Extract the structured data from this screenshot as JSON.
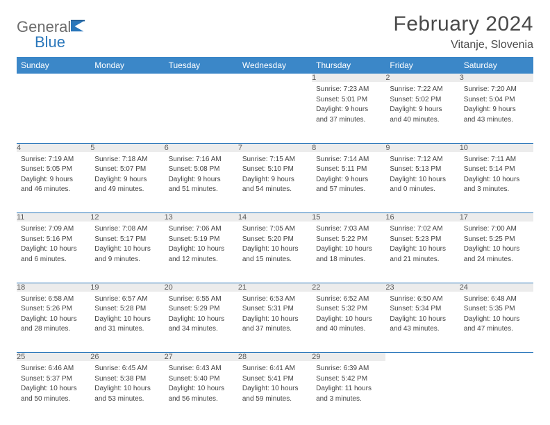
{
  "brand": {
    "general": "General",
    "blue": "Blue"
  },
  "header": {
    "month": "February 2024",
    "location": "Vitanje, Slovenia"
  },
  "colors": {
    "header_bg": "#3b87c8",
    "divider": "#2a77bb",
    "daynum_bg": "#ececec",
    "text": "#333333",
    "brand_blue": "#2a77bb",
    "brand_gray": "#6d6d6d"
  },
  "weekdays": [
    "Sunday",
    "Monday",
    "Tuesday",
    "Wednesday",
    "Thursday",
    "Friday",
    "Saturday"
  ],
  "weeks": [
    [
      null,
      null,
      null,
      null,
      {
        "n": "1",
        "sr": "Sunrise: 7:23 AM",
        "ss": "Sunset: 5:01 PM",
        "d1": "Daylight: 9 hours",
        "d2": "and 37 minutes."
      },
      {
        "n": "2",
        "sr": "Sunrise: 7:22 AM",
        "ss": "Sunset: 5:02 PM",
        "d1": "Daylight: 9 hours",
        "d2": "and 40 minutes."
      },
      {
        "n": "3",
        "sr": "Sunrise: 7:20 AM",
        "ss": "Sunset: 5:04 PM",
        "d1": "Daylight: 9 hours",
        "d2": "and 43 minutes."
      }
    ],
    [
      {
        "n": "4",
        "sr": "Sunrise: 7:19 AM",
        "ss": "Sunset: 5:05 PM",
        "d1": "Daylight: 9 hours",
        "d2": "and 46 minutes."
      },
      {
        "n": "5",
        "sr": "Sunrise: 7:18 AM",
        "ss": "Sunset: 5:07 PM",
        "d1": "Daylight: 9 hours",
        "d2": "and 49 minutes."
      },
      {
        "n": "6",
        "sr": "Sunrise: 7:16 AM",
        "ss": "Sunset: 5:08 PM",
        "d1": "Daylight: 9 hours",
        "d2": "and 51 minutes."
      },
      {
        "n": "7",
        "sr": "Sunrise: 7:15 AM",
        "ss": "Sunset: 5:10 PM",
        "d1": "Daylight: 9 hours",
        "d2": "and 54 minutes."
      },
      {
        "n": "8",
        "sr": "Sunrise: 7:14 AM",
        "ss": "Sunset: 5:11 PM",
        "d1": "Daylight: 9 hours",
        "d2": "and 57 minutes."
      },
      {
        "n": "9",
        "sr": "Sunrise: 7:12 AM",
        "ss": "Sunset: 5:13 PM",
        "d1": "Daylight: 10 hours",
        "d2": "and 0 minutes."
      },
      {
        "n": "10",
        "sr": "Sunrise: 7:11 AM",
        "ss": "Sunset: 5:14 PM",
        "d1": "Daylight: 10 hours",
        "d2": "and 3 minutes."
      }
    ],
    [
      {
        "n": "11",
        "sr": "Sunrise: 7:09 AM",
        "ss": "Sunset: 5:16 PM",
        "d1": "Daylight: 10 hours",
        "d2": "and 6 minutes."
      },
      {
        "n": "12",
        "sr": "Sunrise: 7:08 AM",
        "ss": "Sunset: 5:17 PM",
        "d1": "Daylight: 10 hours",
        "d2": "and 9 minutes."
      },
      {
        "n": "13",
        "sr": "Sunrise: 7:06 AM",
        "ss": "Sunset: 5:19 PM",
        "d1": "Daylight: 10 hours",
        "d2": "and 12 minutes."
      },
      {
        "n": "14",
        "sr": "Sunrise: 7:05 AM",
        "ss": "Sunset: 5:20 PM",
        "d1": "Daylight: 10 hours",
        "d2": "and 15 minutes."
      },
      {
        "n": "15",
        "sr": "Sunrise: 7:03 AM",
        "ss": "Sunset: 5:22 PM",
        "d1": "Daylight: 10 hours",
        "d2": "and 18 minutes."
      },
      {
        "n": "16",
        "sr": "Sunrise: 7:02 AM",
        "ss": "Sunset: 5:23 PM",
        "d1": "Daylight: 10 hours",
        "d2": "and 21 minutes."
      },
      {
        "n": "17",
        "sr": "Sunrise: 7:00 AM",
        "ss": "Sunset: 5:25 PM",
        "d1": "Daylight: 10 hours",
        "d2": "and 24 minutes."
      }
    ],
    [
      {
        "n": "18",
        "sr": "Sunrise: 6:58 AM",
        "ss": "Sunset: 5:26 PM",
        "d1": "Daylight: 10 hours",
        "d2": "and 28 minutes."
      },
      {
        "n": "19",
        "sr": "Sunrise: 6:57 AM",
        "ss": "Sunset: 5:28 PM",
        "d1": "Daylight: 10 hours",
        "d2": "and 31 minutes."
      },
      {
        "n": "20",
        "sr": "Sunrise: 6:55 AM",
        "ss": "Sunset: 5:29 PM",
        "d1": "Daylight: 10 hours",
        "d2": "and 34 minutes."
      },
      {
        "n": "21",
        "sr": "Sunrise: 6:53 AM",
        "ss": "Sunset: 5:31 PM",
        "d1": "Daylight: 10 hours",
        "d2": "and 37 minutes."
      },
      {
        "n": "22",
        "sr": "Sunrise: 6:52 AM",
        "ss": "Sunset: 5:32 PM",
        "d1": "Daylight: 10 hours",
        "d2": "and 40 minutes."
      },
      {
        "n": "23",
        "sr": "Sunrise: 6:50 AM",
        "ss": "Sunset: 5:34 PM",
        "d1": "Daylight: 10 hours",
        "d2": "and 43 minutes."
      },
      {
        "n": "24",
        "sr": "Sunrise: 6:48 AM",
        "ss": "Sunset: 5:35 PM",
        "d1": "Daylight: 10 hours",
        "d2": "and 47 minutes."
      }
    ],
    [
      {
        "n": "25",
        "sr": "Sunrise: 6:46 AM",
        "ss": "Sunset: 5:37 PM",
        "d1": "Daylight: 10 hours",
        "d2": "and 50 minutes."
      },
      {
        "n": "26",
        "sr": "Sunrise: 6:45 AM",
        "ss": "Sunset: 5:38 PM",
        "d1": "Daylight: 10 hours",
        "d2": "and 53 minutes."
      },
      {
        "n": "27",
        "sr": "Sunrise: 6:43 AM",
        "ss": "Sunset: 5:40 PM",
        "d1": "Daylight: 10 hours",
        "d2": "and 56 minutes."
      },
      {
        "n": "28",
        "sr": "Sunrise: 6:41 AM",
        "ss": "Sunset: 5:41 PM",
        "d1": "Daylight: 10 hours",
        "d2": "and 59 minutes."
      },
      {
        "n": "29",
        "sr": "Sunrise: 6:39 AM",
        "ss": "Sunset: 5:42 PM",
        "d1": "Daylight: 11 hours",
        "d2": "and 3 minutes."
      },
      null,
      null
    ]
  ]
}
